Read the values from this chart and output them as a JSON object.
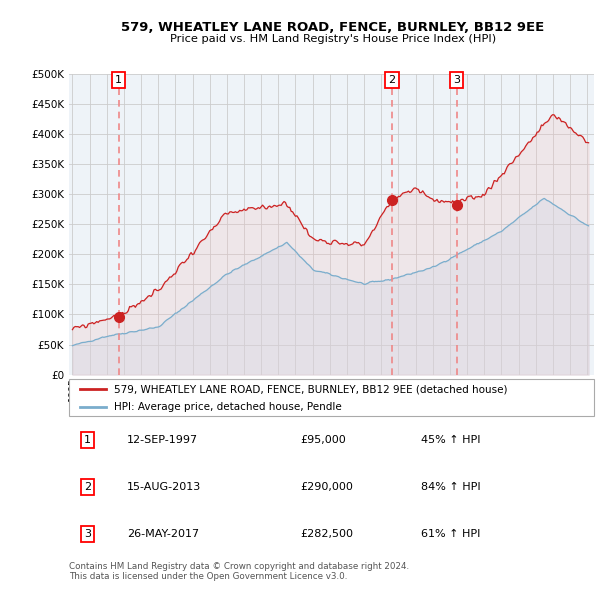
{
  "title": "579, WHEATLEY LANE ROAD, FENCE, BURNLEY, BB12 9EE",
  "subtitle": "Price paid vs. HM Land Registry's House Price Index (HPI)",
  "ylim": [
    0,
    500000
  ],
  "yticks": [
    0,
    50000,
    100000,
    150000,
    200000,
    250000,
    300000,
    350000,
    400000,
    450000,
    500000
  ],
  "xlim_start": 1994.8,
  "xlim_end": 2025.4,
  "sale_dates": [
    1997.7,
    2013.62,
    2017.4
  ],
  "sale_prices": [
    95000,
    290000,
    282500
  ],
  "sale_labels": [
    "1",
    "2",
    "3"
  ],
  "legend_line1": "579, WHEATLEY LANE ROAD, FENCE, BURNLEY, BB12 9EE (detached house)",
  "legend_line2": "HPI: Average price, detached house, Pendle",
  "table_rows": [
    [
      "1",
      "12-SEP-1997",
      "£95,000",
      "45% ↑ HPI"
    ],
    [
      "2",
      "15-AUG-2013",
      "£290,000",
      "84% ↑ HPI"
    ],
    [
      "3",
      "26-MAY-2017",
      "£282,500",
      "61% ↑ HPI"
    ]
  ],
  "footer": "Contains HM Land Registry data © Crown copyright and database right 2024.\nThis data is licensed under the Open Government Licence v3.0.",
  "line_color_red": "#cc2222",
  "line_color_blue": "#7aadcc",
  "fill_color_red": "#f0c0c0",
  "fill_color_blue": "#c8dff0",
  "dashed_color": "#ee8888",
  "grid_color": "#cccccc",
  "bg_color": "#eef3f8"
}
